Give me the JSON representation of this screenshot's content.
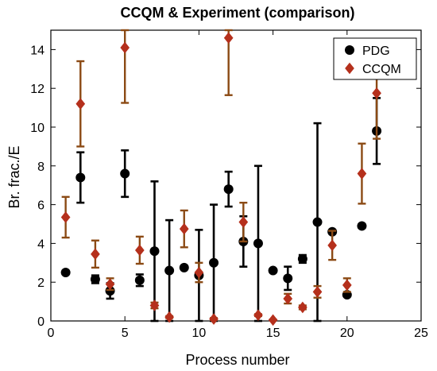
{
  "chart_data": {
    "type": "scatter",
    "title": "CCQM & Experiment (comparison)",
    "xlabel": "Process number",
    "ylabel": "Br. frac./E",
    "xlim": [
      0,
      25
    ],
    "ylim": [
      0,
      15
    ],
    "xticks": [
      "0",
      "5",
      "10",
      "15",
      "20",
      "25"
    ],
    "yticks": [
      "0",
      "2",
      "4",
      "6",
      "8",
      "10",
      "12",
      "14"
    ],
    "grid": false,
    "legend": "top-right",
    "colors": {
      "PDG": "#000000",
      "CCQM": "#b5301c",
      "CCQM_error": "#8b4a14"
    },
    "series": [
      {
        "name": "PDG",
        "marker": "circle",
        "points": [
          {
            "x": 1,
            "y": 2.5,
            "err": 0.0
          },
          {
            "x": 2,
            "y": 7.4,
            "err": 1.3
          },
          {
            "x": 3,
            "y": 2.15,
            "err": 0.2
          },
          {
            "x": 4,
            "y": 1.55,
            "err": 0.4
          },
          {
            "x": 5,
            "y": 7.6,
            "err": 1.2
          },
          {
            "x": 6,
            "y": 2.1,
            "err": 0.3
          },
          {
            "x": 7,
            "y": 3.6,
            "err": 3.6
          },
          {
            "x": 8,
            "y": 2.6,
            "err": 2.6
          },
          {
            "x": 9,
            "y": 2.75,
            "err": 0.0
          },
          {
            "x": 10,
            "y": 2.35,
            "err": 2.35
          },
          {
            "x": 11,
            "y": 3.0,
            "err": 3.0
          },
          {
            "x": 12,
            "y": 6.8,
            "err": 0.9
          },
          {
            "x": 13,
            "y": 4.1,
            "err": 1.3
          },
          {
            "x": 14,
            "y": 4.0,
            "err": 4.0
          },
          {
            "x": 15,
            "y": 2.6,
            "err": 0.0
          },
          {
            "x": 16,
            "y": 2.2,
            "err": 0.6
          },
          {
            "x": 17,
            "y": 3.2,
            "err": 0.2
          },
          {
            "x": 18,
            "y": 5.1,
            "err": 5.1
          },
          {
            "x": 19,
            "y": 4.6,
            "err": 0.0
          },
          {
            "x": 20,
            "y": 1.35,
            "err": 0.0
          },
          {
            "x": 21,
            "y": 4.9,
            "err": 0.0
          },
          {
            "x": 22,
            "y": 9.8,
            "err": 1.7
          }
        ]
      },
      {
        "name": "CCQM",
        "marker": "diamond",
        "points": [
          {
            "x": 1,
            "y": 5.35,
            "err": 1.05
          },
          {
            "x": 2,
            "y": 11.2,
            "err": 2.2
          },
          {
            "x": 3,
            "y": 3.45,
            "err": 0.7
          },
          {
            "x": 4,
            "y": 1.9,
            "err": 0.3
          },
          {
            "x": 5,
            "y": 14.1,
            "err": 2.85
          },
          {
            "x": 6,
            "y": 3.65,
            "err": 0.7
          },
          {
            "x": 7,
            "y": 0.8,
            "err": 0.15
          },
          {
            "x": 8,
            "y": 0.2,
            "err": 0.05
          },
          {
            "x": 9,
            "y": 4.75,
            "err": 0.95
          },
          {
            "x": 10,
            "y": 2.5,
            "err": 0.5
          },
          {
            "x": 11,
            "y": 0.1,
            "err": 0.05
          },
          {
            "x": 12,
            "y": 14.6,
            "err": 2.95
          },
          {
            "x": 13,
            "y": 5.1,
            "err": 1.0
          },
          {
            "x": 14,
            "y": 0.3,
            "err": 0.05
          },
          {
            "x": 15,
            "y": 0.05,
            "err": 0.02
          },
          {
            "x": 16,
            "y": 1.15,
            "err": 0.25
          },
          {
            "x": 17,
            "y": 0.7,
            "err": 0.1
          },
          {
            "x": 18,
            "y": 1.5,
            "err": 0.3
          },
          {
            "x": 19,
            "y": 3.9,
            "err": 0.75
          },
          {
            "x": 20,
            "y": 1.85,
            "err": 0.35
          },
          {
            "x": 21,
            "y": 7.6,
            "err": 1.55
          },
          {
            "x": 22,
            "y": 11.75,
            "err": 2.35
          }
        ]
      }
    ]
  }
}
